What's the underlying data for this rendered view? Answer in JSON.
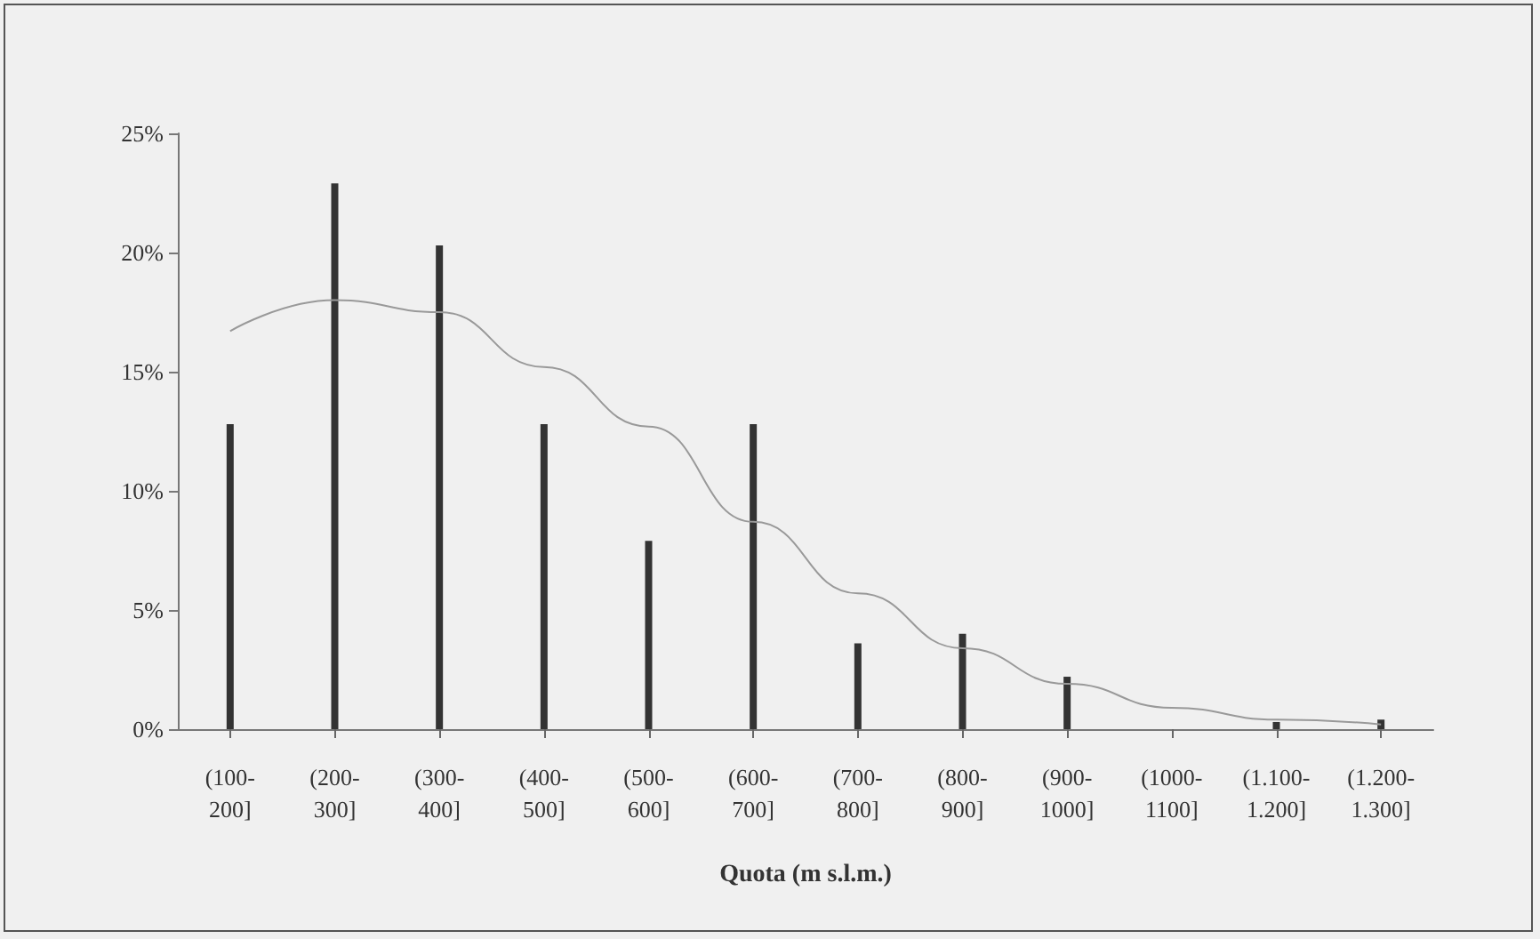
{
  "chart_data": {
    "type": "bar",
    "xlabel": "Quota (m s.l.m.)",
    "categories": [
      "(100-200]",
      "(200-300]",
      "(300-400]",
      "(400-500]",
      "(500-600]",
      "(600-700]",
      "(700-800]",
      "(800-900]",
      "(900-1000]",
      "(1000-1100]",
      "(1.100-1.200]",
      "(1.200-1.300]"
    ],
    "series": [
      {
        "color": "#333333",
        "values": [
          12.8,
          22.9,
          20.3,
          12.8,
          7.9,
          12.8,
          3.6,
          4.0,
          2.2,
          0,
          0.3,
          0.4
        ]
      },
      {
        "type": "line",
        "color": "#999999",
        "values": [
          16.7,
          18.0,
          17.5,
          15.2,
          12.7,
          8.7,
          5.7,
          3.4,
          1.9,
          0.9,
          0.4,
          0.2
        ]
      }
    ],
    "ylim": [
      0,
      25
    ],
    "yticks": [
      {
        "value": 0,
        "label": "0%"
      },
      {
        "value": 5,
        "label": "5%"
      },
      {
        "value": 10,
        "label": "10%"
      },
      {
        "value": 15,
        "label": "15%"
      },
      {
        "value": 20,
        "label": "20%"
      },
      {
        "value": 25,
        "label": "25%"
      }
    ],
    "grid": false,
    "marker": "none",
    "line_style": "solid"
  }
}
